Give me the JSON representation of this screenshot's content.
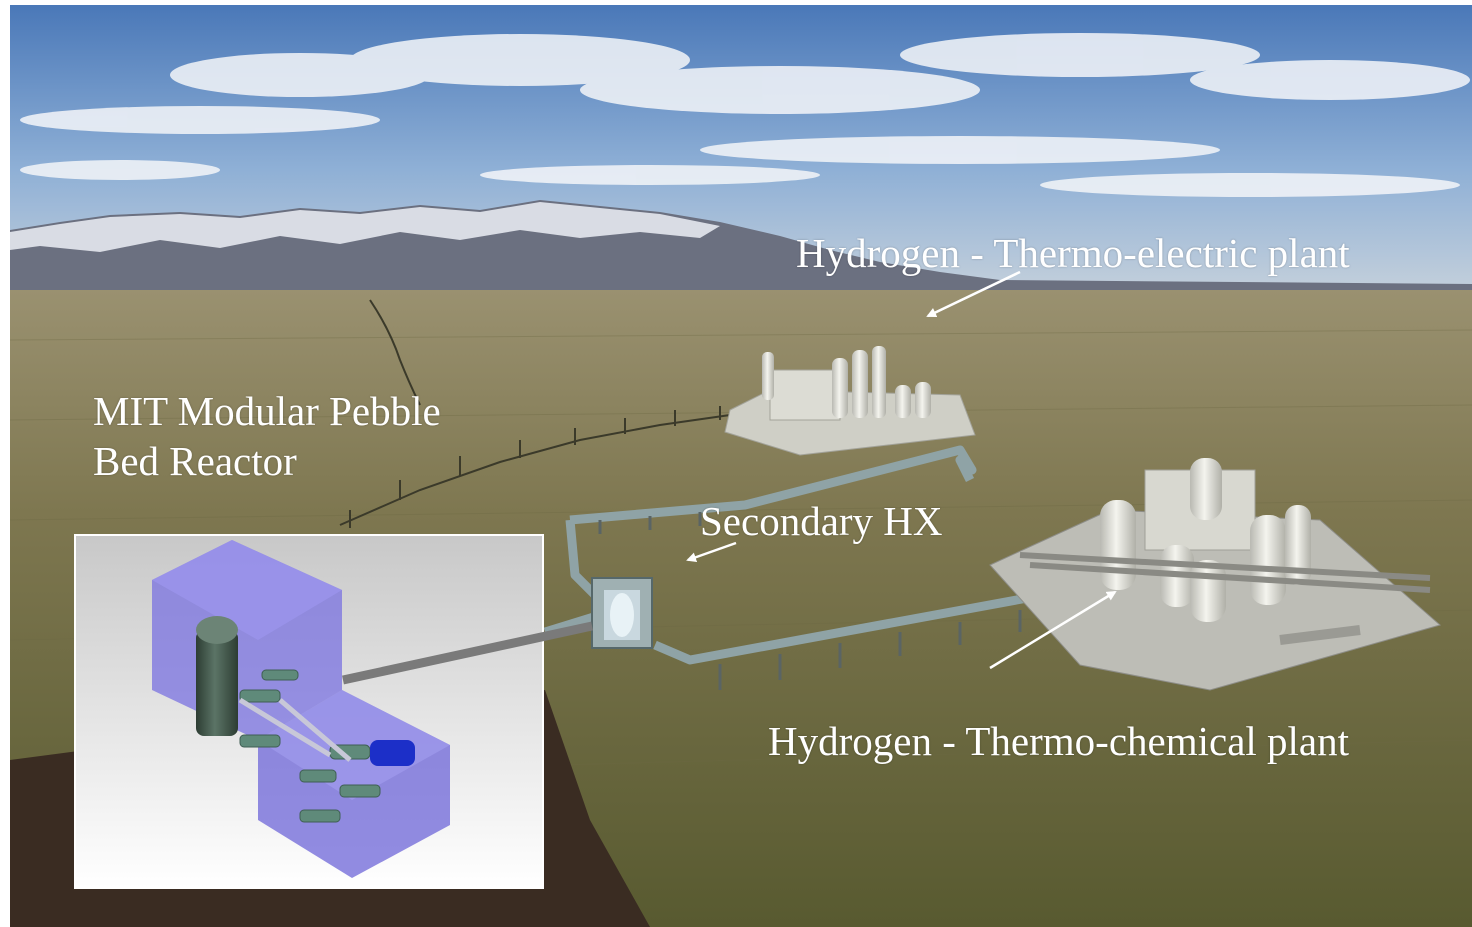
{
  "labels": {
    "thermo_electric_plant": "Hydrogen - Thermo-electric plant",
    "reactor_line1": "MIT Modular Pebble",
    "reactor_line2": "Bed Reactor",
    "secondary_hx": "Secondary HX",
    "thermo_chemical_plant": "Hydrogen - Thermo-chemical plant"
  },
  "colors": {
    "sky_top": "#4a78b8",
    "sky_horizon": "#c9d3dc",
    "ground_far": "#8c8462",
    "ground_near": "#5f6136",
    "label_text": "#ffffff",
    "reactor_box": "#7a72e0",
    "reactor_vessel": "#3f5448",
    "pipe": "#8fa3a6",
    "plant_structure": "#dcdcd4"
  },
  "icons": {
    "annotation_arrow": "arrow-icon",
    "reactor_building": "reactor-building-icon"
  }
}
